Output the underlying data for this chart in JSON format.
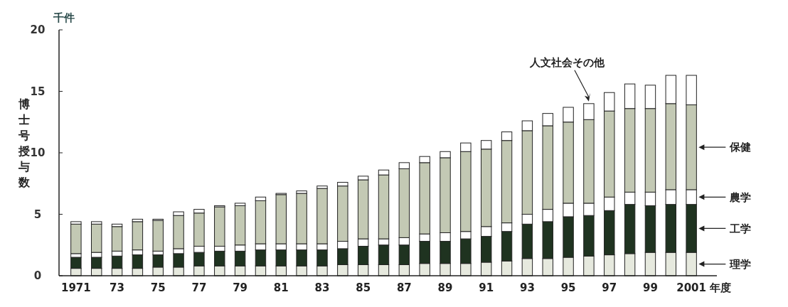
{
  "chart_data": {
    "type": "bar",
    "stacked": true,
    "ylabel": "博士号授与数",
    "xlabel": "年度",
    "annotations": [
      "千件"
    ],
    "categories": [
      "1971",
      null,
      "73",
      null,
      "75",
      null,
      "77",
      null,
      "79",
      null,
      "81",
      null,
      "83",
      null,
      "85",
      null,
      "87",
      null,
      "89",
      null,
      "91",
      null,
      "93",
      null,
      "95",
      null,
      "97",
      null,
      "99",
      null,
      "2001"
    ],
    "ylim": [
      0,
      20
    ],
    "yticks": [
      0,
      5,
      10,
      15,
      20
    ],
    "grid": false,
    "legend": "right",
    "series": [
      {
        "name": "理学",
        "color": "#e6e9de",
        "values": [
          0.6,
          0.6,
          0.6,
          0.6,
          0.7,
          0.7,
          0.8,
          0.8,
          0.8,
          0.8,
          0.8,
          0.8,
          0.8,
          0.9,
          0.9,
          0.9,
          0.9,
          1.0,
          1.0,
          1.0,
          1.1,
          1.2,
          1.4,
          1.4,
          1.5,
          1.6,
          1.7,
          1.8,
          1.9,
          1.9,
          1.9
        ]
      },
      {
        "name": "工学",
        "color": "#1f3320",
        "values": [
          0.9,
          0.9,
          1.0,
          1.1,
          1.0,
          1.1,
          1.1,
          1.2,
          1.2,
          1.3,
          1.3,
          1.3,
          1.3,
          1.3,
          1.5,
          1.6,
          1.6,
          1.8,
          1.8,
          2.0,
          2.1,
          2.4,
          2.8,
          3.0,
          3.3,
          3.3,
          3.6,
          4.0,
          3.8,
          3.9,
          3.9
        ]
      },
      {
        "name": "農学",
        "color": "#ffffff",
        "values": [
          0.3,
          0.4,
          0.4,
          0.4,
          0.3,
          0.4,
          0.5,
          0.4,
          0.5,
          0.5,
          0.5,
          0.5,
          0.5,
          0.6,
          0.6,
          0.5,
          0.6,
          0.6,
          0.7,
          0.6,
          0.8,
          0.7,
          0.8,
          1.0,
          1.1,
          1.0,
          1.1,
          1.0,
          1.1,
          1.2,
          1.2
        ]
      },
      {
        "name": "保健",
        "color": "#c3c9b4",
        "values": [
          2.4,
          2.3,
          2.0,
          2.3,
          2.5,
          2.7,
          2.7,
          3.2,
          3.2,
          3.5,
          4.0,
          4.1,
          4.5,
          4.5,
          4.8,
          5.2,
          5.6,
          5.8,
          6.1,
          6.5,
          6.3,
          6.7,
          6.8,
          6.8,
          6.6,
          6.8,
          7.0,
          6.8,
          6.8,
          7.0,
          6.9
        ]
      },
      {
        "name": "人文社会その他",
        "color": "#ffffff",
        "values": [
          0.2,
          0.2,
          0.2,
          0.2,
          0.1,
          0.3,
          0.3,
          0.1,
          0.2,
          0.3,
          0.1,
          0.2,
          0.2,
          0.3,
          0.3,
          0.4,
          0.5,
          0.5,
          0.5,
          0.7,
          0.7,
          0.7,
          0.8,
          1.0,
          1.2,
          1.3,
          1.5,
          2.0,
          1.9,
          2.3,
          2.4
        ]
      }
    ]
  }
}
